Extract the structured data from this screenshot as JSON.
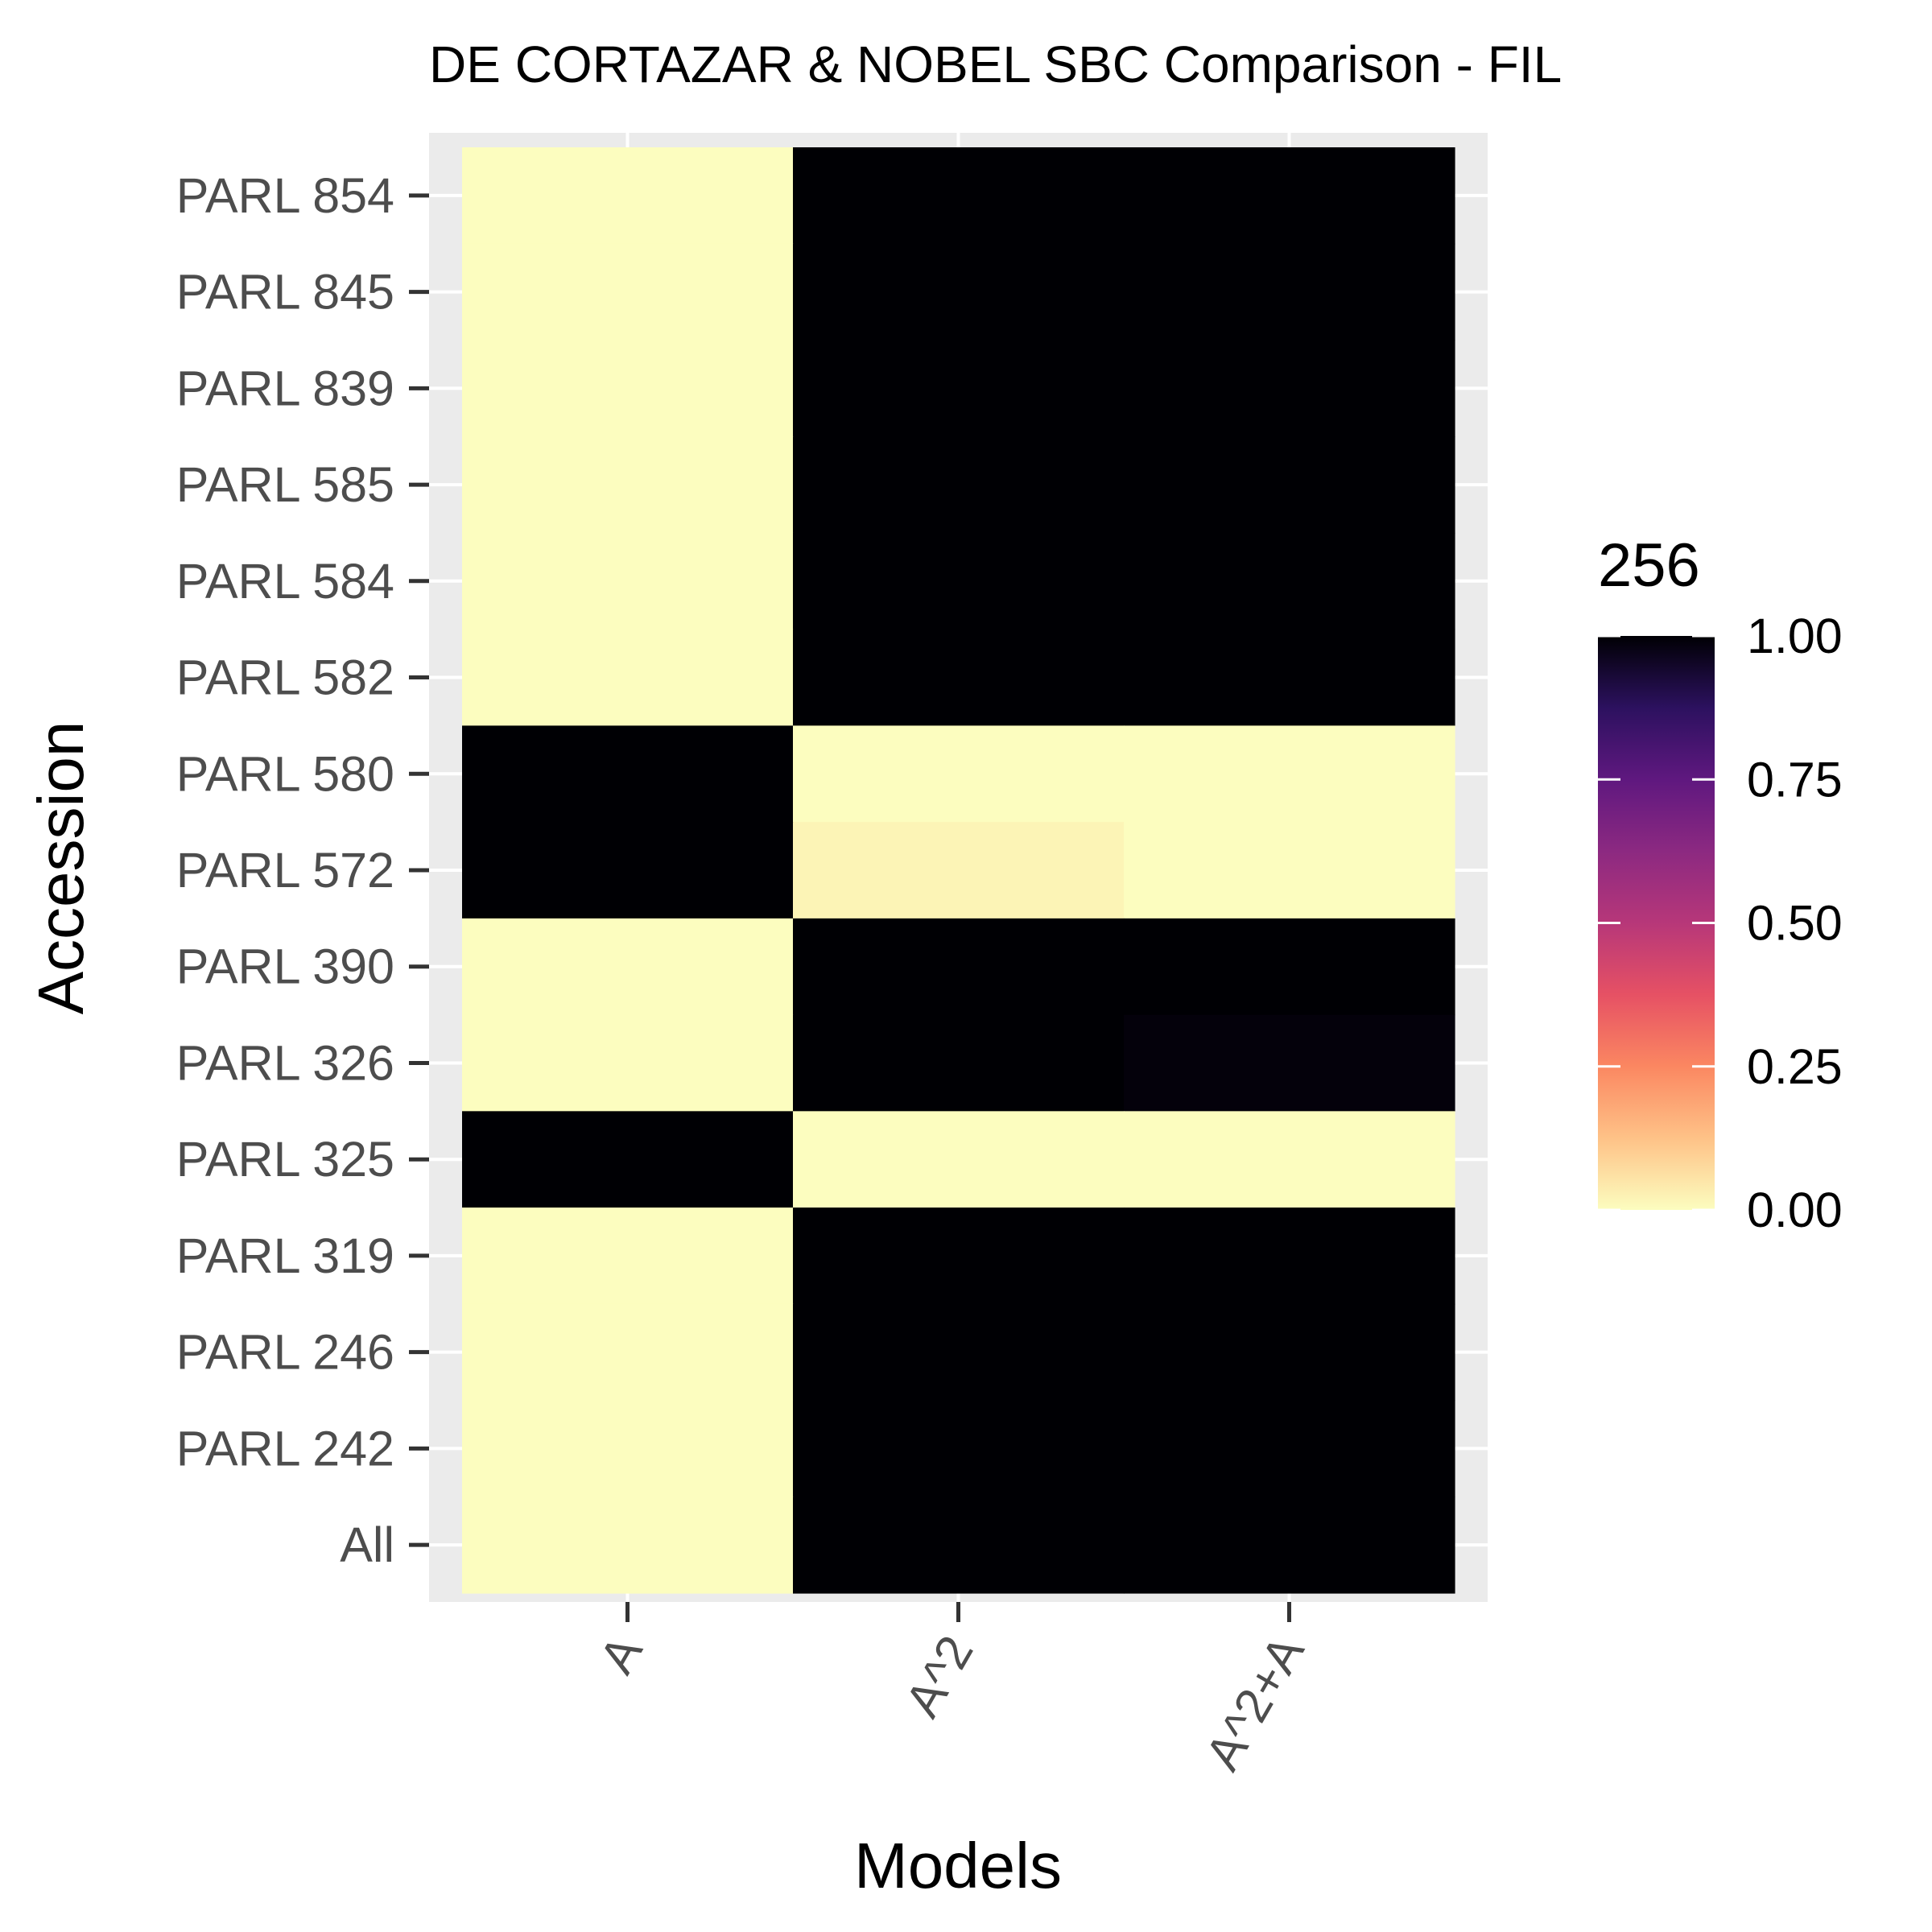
{
  "chart_data": {
    "type": "heatmap",
    "title": "DE CORTAZAR & NOBEL SBC Comparison - FIL",
    "xlabel": "Models",
    "ylabel": "Accession",
    "x_categories": [
      "A",
      "A^2",
      "A^2+A"
    ],
    "y_categories": [
      "PARL 854",
      "PARL 845",
      "PARL 839",
      "PARL 585",
      "PARL 584",
      "PARL 582",
      "PARL 580",
      "PARL 572",
      "PARL 390",
      "PARL 326",
      "PARL 325",
      "PARL 319",
      "PARL 246",
      "PARL 242",
      "All"
    ],
    "values": [
      [
        0,
        1,
        1
      ],
      [
        0,
        1,
        1
      ],
      [
        0,
        1,
        1
      ],
      [
        0,
        1,
        1
      ],
      [
        0,
        1,
        1
      ],
      [
        0,
        1,
        1
      ],
      [
        1,
        0,
        0
      ],
      [
        1,
        0.02,
        0
      ],
      [
        0,
        1,
        1
      ],
      [
        0,
        1,
        0.99
      ],
      [
        1,
        0,
        0
      ],
      [
        0,
        1,
        1
      ],
      [
        0,
        1,
        1
      ],
      [
        0,
        1,
        1
      ],
      [
        0,
        1,
        1
      ]
    ],
    "value_range": [
      0,
      1
    ],
    "colorscale": "magma-reversed",
    "colorscale_stops": [
      "#fcfdbf",
      "#fec287",
      "#fb8761",
      "#e65164",
      "#b73779",
      "#8c2981",
      "#5f187f",
      "#2c115f",
      "#000004"
    ],
    "legend": {
      "title": "256",
      "ticks": [
        "1.00",
        "0.75",
        "0.50",
        "0.25",
        "0.00"
      ],
      "tick_values": [
        1,
        0.75,
        0.5,
        0.25,
        0
      ],
      "placement": "right"
    },
    "panel_background": "#ebebeb",
    "grid": true
  }
}
